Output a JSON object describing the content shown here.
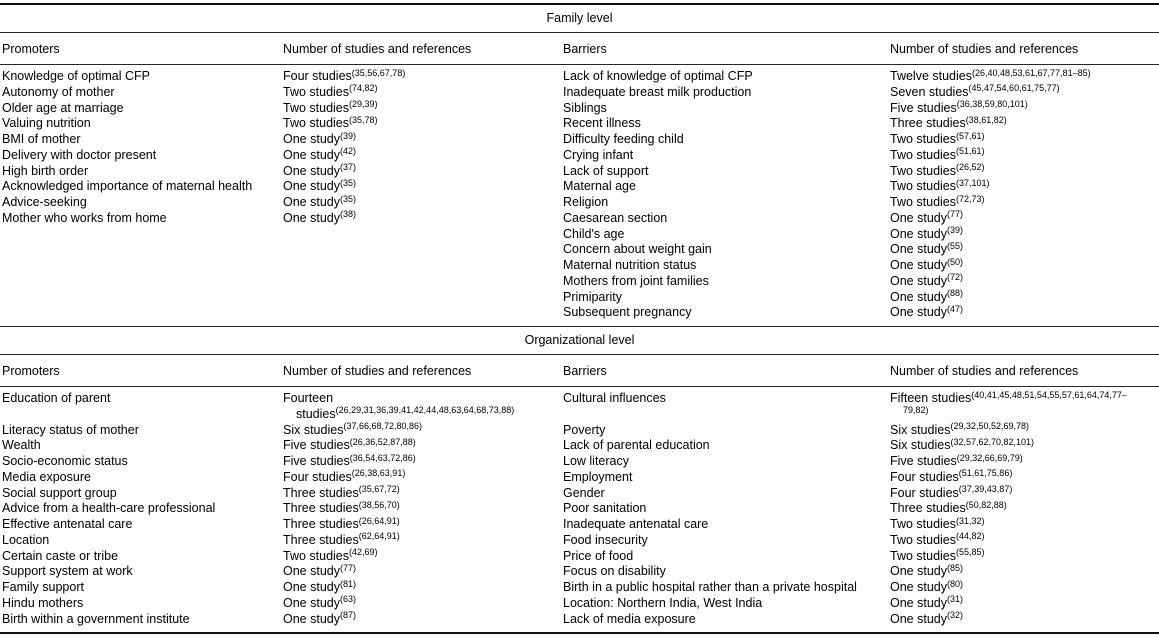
{
  "colors": {
    "text": "#000000",
    "background": "#ffffff",
    "rule": "#262626"
  },
  "sections": [
    {
      "title": "Family level",
      "columns": [
        "Promoters",
        "Number of studies and references",
        "Barriers",
        "Number of studies and references"
      ],
      "rows": [
        {
          "promoter": "Knowledge of optimal CFP",
          "p_count": "Four studies",
          "p_refs": "(35,56,67,78)",
          "barrier": "Lack of knowledge of optimal CFP",
          "b_count": "Twelve studies",
          "b_refs": "(26,40,48,53,61,67,77,81–85)"
        },
        {
          "promoter": "Autonomy of mother",
          "p_count": "Two studies",
          "p_refs": "(74,82)",
          "barrier": "Inadequate breast milk production",
          "b_count": "Seven studies",
          "b_refs": "(45,47,54,60,61,75,77)"
        },
        {
          "promoter": "Older age at marriage",
          "p_count": "Two studies",
          "p_refs": "(29,39)",
          "barrier": "Siblings",
          "b_count": "Five studies",
          "b_refs": "(36,38,59,80,101)"
        },
        {
          "promoter": "Valuing nutrition",
          "p_count": "Two studies",
          "p_refs": "(35,78)",
          "barrier": "Recent illness",
          "b_count": "Three studies",
          "b_refs": "(38,61,82)"
        },
        {
          "promoter": "BMI of mother",
          "p_count": "One study",
          "p_refs": "(39)",
          "barrier": "Difficulty feeding child",
          "b_count": "Two studies",
          "b_refs": "(57,61)"
        },
        {
          "promoter": "Delivery with doctor present",
          "p_count": "One study",
          "p_refs": "(42)",
          "barrier": "Crying infant",
          "b_count": "Two studies",
          "b_refs": "(51,61)"
        },
        {
          "promoter": "High birth order",
          "p_count": "One study",
          "p_refs": "(37)",
          "barrier": "Lack of support",
          "b_count": "Two studies",
          "b_refs": "(26,52)"
        },
        {
          "promoter": "Acknowledged importance of maternal health",
          "p_count": "One study",
          "p_refs": "(35)",
          "barrier": "Maternal age",
          "b_count": "Two studies",
          "b_refs": "(37,101)"
        },
        {
          "promoter": "Advice-seeking",
          "p_count": "One study",
          "p_refs": "(35)",
          "barrier": "Religion",
          "b_count": "Two studies",
          "b_refs": "(72,73)"
        },
        {
          "promoter": "Mother who works from home",
          "p_count": "One study",
          "p_refs": "(38)",
          "barrier": "Caesarean section",
          "b_count": "One study",
          "b_refs": "(77)"
        },
        {
          "promoter": "",
          "p_count": "",
          "p_refs": "",
          "barrier": "Child's age",
          "b_count": "One study",
          "b_refs": "(39)"
        },
        {
          "promoter": "",
          "p_count": "",
          "p_refs": "",
          "barrier": "Concern about weight gain",
          "b_count": "One study",
          "b_refs": "(55)"
        },
        {
          "promoter": "",
          "p_count": "",
          "p_refs": "",
          "barrier": "Maternal nutrition status",
          "b_count": "One study",
          "b_refs": "(50)"
        },
        {
          "promoter": "",
          "p_count": "",
          "p_refs": "",
          "barrier": "Mothers from joint families",
          "b_count": "One study",
          "b_refs": "(72)"
        },
        {
          "promoter": "",
          "p_count": "",
          "p_refs": "",
          "barrier": "Primiparity",
          "b_count": "One study",
          "b_refs": "(88)"
        },
        {
          "promoter": "",
          "p_count": "",
          "p_refs": "",
          "barrier": "Subsequent pregnancy",
          "b_count": "One study",
          "b_refs": "(47)"
        }
      ]
    },
    {
      "title": "Organizational level",
      "columns": [
        "Promoters",
        "Number of studies and references",
        "Barriers",
        "Number of studies and references"
      ],
      "rows": [
        {
          "promoter": "Education of parent",
          "p_count": "Fourteen studies",
          "p_refs": "(26,29,31,36,39,41,42,44,48,63,64,68,73,88)",
          "barrier": "Cultural influences",
          "b_count": "Fifteen studies",
          "b_refs": "(40,41,45,48,51,54,55,57,61,64,74,77–79,82)"
        },
        {
          "promoter": "Literacy status of mother",
          "p_count": "Six studies",
          "p_refs": "(37,66,68,72,80,86)",
          "barrier": "Poverty",
          "b_count": "Six studies",
          "b_refs": "(29,32,50,52,69,78)"
        },
        {
          "promoter": "Wealth",
          "p_count": "Five studies",
          "p_refs": "(26,36,52,87,88)",
          "barrier": "Lack of parental education",
          "b_count": "Six studies",
          "b_refs": "(32,57,62,70,82,101)"
        },
        {
          "promoter": "Socio-economic status",
          "p_count": "Five studies",
          "p_refs": "(36,54,63,72,86)",
          "barrier": "Low literacy",
          "b_count": "Five studies",
          "b_refs": "(29,32,66,69,79)"
        },
        {
          "promoter": "Media exposure",
          "p_count": "Four studies",
          "p_refs": "(26,38,63,91)",
          "barrier": "Employment",
          "b_count": "Four studies",
          "b_refs": "(51,61,75,86)"
        },
        {
          "promoter": "Social support group",
          "p_count": "Three studies",
          "p_refs": "(35,67,72)",
          "barrier": "Gender",
          "b_count": "Four studies",
          "b_refs": "(37,39,43,87)"
        },
        {
          "promoter": "Advice from a health-care professional",
          "p_count": "Three studies",
          "p_refs": "(38,56,70)",
          "barrier": "Poor sanitation",
          "b_count": "Three studies",
          "b_refs": "(50,82,88)"
        },
        {
          "promoter": "Effective antenatal care",
          "p_count": "Three studies",
          "p_refs": "(26,64,91)",
          "barrier": "Inadequate antenatal care",
          "b_count": "Two studies",
          "b_refs": "(31,32)"
        },
        {
          "promoter": "Location",
          "p_count": "Three studies",
          "p_refs": "(62,64,91)",
          "barrier": "Food insecurity",
          "b_count": "Two studies",
          "b_refs": "(44,82)"
        },
        {
          "promoter": "Certain caste or tribe",
          "p_count": "Two studies",
          "p_refs": "(42,69)",
          "barrier": "Price of food",
          "b_count": "Two studies",
          "b_refs": "(55,85)"
        },
        {
          "promoter": "Support system at work",
          "p_count": "One study",
          "p_refs": "(77)",
          "barrier": "Focus on disability",
          "b_count": "One study",
          "b_refs": "(85)"
        },
        {
          "promoter": "Family support",
          "p_count": "One study",
          "p_refs": "(81)",
          "barrier": "Birth in a public hospital rather than a private hospital",
          "b_count": "One study",
          "b_refs": "(80)"
        },
        {
          "promoter": "Hindu mothers",
          "p_count": "One study",
          "p_refs": "(63)",
          "barrier": "Location: Northern India, West India",
          "b_count": "One study",
          "b_refs": "(31)"
        },
        {
          "promoter": "Birth within a government institute",
          "p_count": "One study",
          "p_refs": "(87)",
          "barrier": "Lack of media exposure",
          "b_count": "One study",
          "b_refs": "(32)"
        }
      ]
    }
  ]
}
